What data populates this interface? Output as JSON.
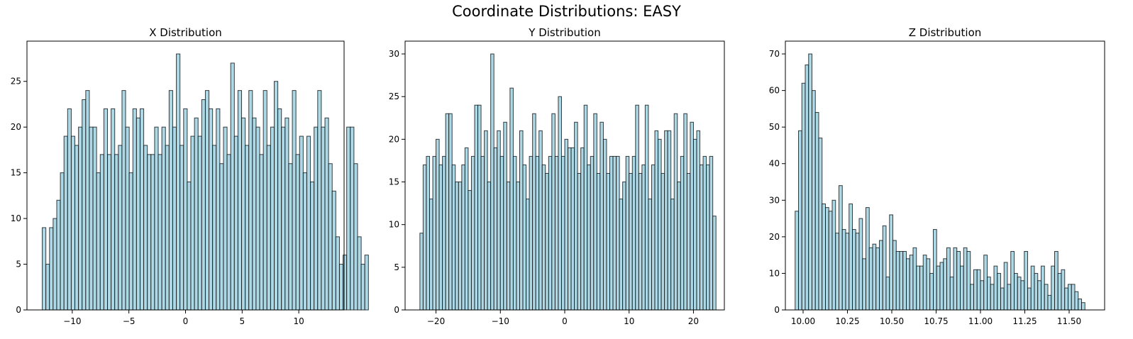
{
  "figure": {
    "title": "Coordinate Distributions: EASY",
    "bar_color": "#add8e6",
    "edge_color": "#000000"
  },
  "chart_data": [
    {
      "type": "bar",
      "title": "X Distribution",
      "xlabel": "",
      "ylabel": "",
      "xlim": [
        -14.0,
        14.0
      ],
      "ylim": [
        0,
        29.4
      ],
      "xticks": [
        -10,
        -5,
        0,
        5,
        10
      ],
      "xtick_labels": [
        "−10",
        "−5",
        "0",
        "5",
        "10"
      ],
      "yticks": [
        0,
        5,
        10,
        15,
        20,
        25
      ],
      "bin_start": -12.65,
      "bin_width": 0.32,
      "values": [
        9,
        5,
        9,
        10,
        12,
        15,
        19,
        22,
        19,
        18,
        20,
        23,
        24,
        20,
        20,
        15,
        17,
        22,
        17,
        22,
        17,
        18,
        24,
        20,
        15,
        22,
        21,
        22,
        18,
        17,
        17,
        20,
        17,
        20,
        18,
        24,
        20,
        28,
        18,
        22,
        14,
        19,
        21,
        19,
        23,
        24,
        22,
        18,
        22,
        16,
        20,
        17,
        27,
        19,
        24,
        21,
        18,
        24,
        21,
        20,
        17,
        24,
        18,
        20,
        25,
        22,
        20,
        21,
        16,
        24,
        17,
        19,
        15,
        19,
        14,
        20,
        24,
        20,
        21,
        16,
        13,
        8,
        5,
        6,
        20,
        20,
        16,
        8,
        5,
        6
      ],
      "grid": false,
      "legend": "none"
    },
    {
      "type": "bar",
      "title": "Y Distribution",
      "xlabel": "",
      "ylabel": "",
      "xlim": [
        -24.8,
        24.8
      ],
      "ylim": [
        0,
        31.5
      ],
      "xticks": [
        -20,
        -10,
        0,
        10,
        20
      ],
      "xtick_labels": [
        "−20",
        "−10",
        "0",
        "10",
        "20"
      ],
      "yticks": [
        0,
        5,
        10,
        15,
        20,
        25,
        30
      ],
      "bin_start": -22.5,
      "bin_width": 0.5,
      "values": [
        9,
        17,
        18,
        13,
        18,
        20,
        17,
        18,
        23,
        23,
        17,
        15,
        15,
        17,
        19,
        14,
        18,
        24,
        24,
        18,
        21,
        15,
        30,
        19,
        21,
        18,
        22,
        15,
        26,
        18,
        15,
        21,
        17,
        13,
        18,
        23,
        18,
        21,
        17,
        16,
        18,
        23,
        18,
        25,
        18,
        20,
        19,
        19,
        22,
        16,
        19,
        24,
        17,
        18,
        23,
        16,
        22,
        20,
        16,
        18,
        18,
        18,
        13,
        15,
        18,
        16,
        18,
        24,
        16,
        17,
        24,
        13,
        17,
        21,
        20,
        16,
        21,
        21,
        13,
        23,
        15,
        18,
        23,
        16,
        22,
        20,
        21,
        17,
        18,
        17,
        18,
        11
      ],
      "grid": false,
      "legend": "none"
    },
    {
      "type": "bar",
      "title": "Z Distribution",
      "xlabel": "",
      "ylabel": "",
      "xlim": [
        9.9,
        11.7
      ],
      "ylim": [
        0,
        73.5
      ],
      "xticks": [
        10.0,
        10.25,
        10.5,
        10.75,
        11.0,
        11.25,
        11.5
      ],
      "xtick_labels": [
        "10.00",
        "10.25",
        "10.50",
        "10.75",
        "11.00",
        "11.25",
        "11.50"
      ],
      "yticks": [
        0,
        10,
        20,
        30,
        40,
        50,
        60,
        70
      ],
      "bin_start": 9.955,
      "bin_width": 0.019,
      "values": [
        27,
        49,
        62,
        67,
        70,
        60,
        54,
        47,
        29,
        28,
        27,
        30,
        21,
        34,
        22,
        21,
        29,
        22,
        21,
        25,
        14,
        28,
        17,
        18,
        17,
        19,
        23,
        9,
        26,
        19,
        16,
        16,
        16,
        14,
        15,
        17,
        12,
        12,
        15,
        14,
        10,
        22,
        12,
        13,
        14,
        17,
        9,
        17,
        16,
        12,
        17,
        16,
        7,
        11,
        11,
        8,
        15,
        9,
        7,
        12,
        10,
        6,
        13,
        7,
        16,
        10,
        9,
        8,
        16,
        6,
        12,
        10,
        8,
        12,
        7,
        4,
        12,
        16,
        10,
        11,
        6,
        7,
        7,
        5,
        3,
        2
      ],
      "grid": false,
      "legend": "none"
    }
  ]
}
